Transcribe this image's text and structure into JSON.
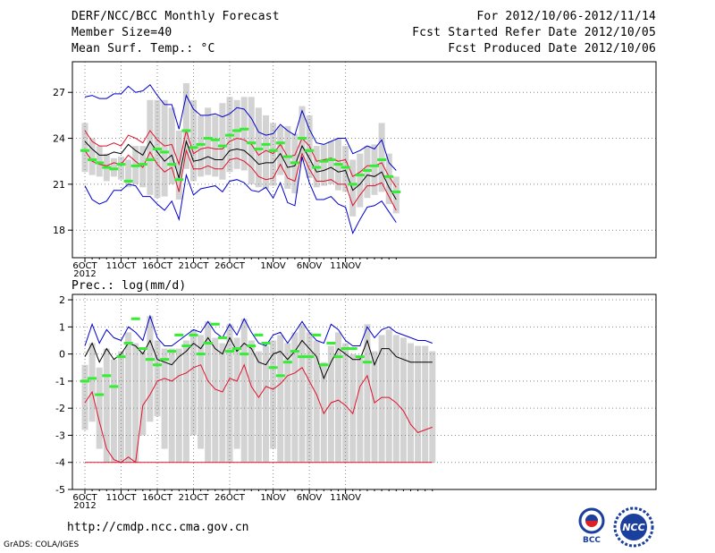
{
  "header": {
    "title": "DERF/NCC/BCC Monthly Forecast",
    "member_size": "Member Size=40",
    "variable": "Mean Surf. Temp.: °C",
    "period": "For 2012/10/06-2012/11/14",
    "started": "Fcst Started Refer Date 2012/10/05",
    "produced": "Fcst Produced Date 2012/10/06"
  },
  "footer": {
    "url": "http://cmdp.ncc.cma.gov.cn",
    "credit": "GrADS: COLA/IGES",
    "logo_bcc": "BCC",
    "logo_ncc": "NCC"
  },
  "colors": {
    "box": "#d3d3d3",
    "mean": "#000000",
    "spread": "#e0102a",
    "envelope": "#0000cc",
    "obs": "#33ee33",
    "grid": "#888888"
  },
  "chart_data": [
    {
      "type": "line",
      "title": "Mean Surf. Temp.: °C",
      "ylim": [
        16.2,
        29
      ],
      "yticks": [
        18,
        21,
        24,
        27
      ],
      "xticks": [
        {
          "day": 0,
          "label": "6OCT"
        },
        {
          "day": 5,
          "label": "11OCT"
        },
        {
          "day": 10,
          "label": "16OCT"
        },
        {
          "day": 15,
          "label": "21OCT"
        },
        {
          "day": 20,
          "label": "26OCT"
        },
        {
          "day": 26,
          "label": "1NOV"
        },
        {
          "day": 31,
          "label": "6NOV"
        },
        {
          "day": 36,
          "label": "11NOV"
        }
      ],
      "year_label": "2012",
      "series": [
        {
          "name": "ensemble max",
          "role": "envelope",
          "values": [
            26.7,
            26.8,
            26.6,
            26.6,
            26.9,
            26.9,
            27.4,
            27.0,
            27.1,
            27.5,
            26.8,
            26.2,
            26.2,
            24.6,
            26.8,
            25.9,
            25.5,
            25.5,
            25.6,
            25.4,
            25.6,
            26.0,
            25.9,
            25.3,
            24.4,
            24.2,
            24.3,
            24.9,
            24.5,
            24.2,
            25.8,
            24.6,
            23.7,
            23.6,
            23.8,
            24.0,
            24.0,
            23.0,
            23.2,
            23.5,
            23.3,
            23.9,
            22.4,
            21.9
          ]
        },
        {
          "name": "mean + spread",
          "role": "spread",
          "values": [
            24.5,
            23.8,
            23.5,
            23.5,
            23.7,
            23.5,
            24.2,
            24.0,
            23.7,
            24.5,
            23.9,
            23.5,
            23.6,
            22.3,
            24.5,
            23.0,
            23.3,
            23.4,
            23.3,
            23.3,
            23.8,
            24.0,
            23.9,
            23.6,
            22.9,
            23.2,
            23.0,
            23.6,
            22.8,
            22.9,
            24.0,
            23.5,
            22.5,
            22.6,
            22.7,
            22.5,
            22.6,
            21.5,
            21.8,
            22.2,
            22.2,
            22.4,
            21.5,
            20.8
          ]
        },
        {
          "name": "ensemble mean",
          "role": "mean",
          "values": [
            23.8,
            23.3,
            22.9,
            22.9,
            23.1,
            23.0,
            23.6,
            23.2,
            22.9,
            23.8,
            23.1,
            22.5,
            22.9,
            21.4,
            23.8,
            22.5,
            22.6,
            22.8,
            22.6,
            22.6,
            23.2,
            23.3,
            23.2,
            22.8,
            22.3,
            22.4,
            22.4,
            23.0,
            22.1,
            22.2,
            23.5,
            22.7,
            21.8,
            21.9,
            22.1,
            21.8,
            21.9,
            20.6,
            21.0,
            21.6,
            21.5,
            21.8,
            20.8,
            20.0
          ]
        },
        {
          "name": "mean - spread",
          "role": "spread",
          "values": [
            23.2,
            22.5,
            22.3,
            22.2,
            22.4,
            22.3,
            22.9,
            22.5,
            22.1,
            23.1,
            22.3,
            21.8,
            22.1,
            20.5,
            23.2,
            22.0,
            22.0,
            22.2,
            22.0,
            22.0,
            22.6,
            22.7,
            22.5,
            22.1,
            21.5,
            21.3,
            21.4,
            22.3,
            21.4,
            21.2,
            23.0,
            22.0,
            21.2,
            21.2,
            21.3,
            21.0,
            21.0,
            19.6,
            20.3,
            20.9,
            20.9,
            21.1,
            20.2,
            19.3
          ]
        },
        {
          "name": "ensemble min",
          "role": "envelope",
          "values": [
            20.9,
            20.0,
            19.7,
            19.9,
            20.6,
            20.6,
            21.0,
            20.9,
            20.2,
            20.2,
            19.7,
            19.3,
            19.9,
            18.7,
            21.6,
            20.3,
            20.7,
            20.8,
            20.9,
            20.5,
            21.2,
            21.3,
            21.1,
            20.6,
            20.5,
            20.8,
            20.1,
            21.1,
            19.8,
            19.6,
            22.8,
            21.1,
            20.0,
            20.0,
            20.2,
            19.7,
            19.5,
            17.8,
            18.7,
            19.5,
            19.6,
            19.9,
            19.2,
            18.5
          ]
        },
        {
          "name": "observed",
          "role": "obs",
          "values": [
            23.2,
            22.6,
            22.4,
            22.1,
            22.0,
            22.3,
            21.2,
            22.2,
            22.3,
            22.6,
            23.3,
            23.1,
            22.3,
            21.3,
            24.5,
            23.4,
            23.6,
            24.0,
            23.9,
            23.5,
            24.2,
            24.5,
            24.6,
            23.7,
            23.3,
            23.6,
            23.2,
            23.7,
            22.8,
            22.4,
            24.0,
            23.2,
            22.1,
            22.5,
            22.6,
            22.3,
            22.1,
            21.0,
            21.6,
            21.9,
            22.2,
            22.6,
            21.5,
            20.5
          ]
        }
      ],
      "boxes": {
        "q_low": [
          21.8,
          21.6,
          21.5,
          21.2,
          21.5,
          21.3,
          20.8,
          21.0,
          20.8,
          20.3,
          20.1,
          20.2,
          21.0,
          20.0,
          22.0,
          21.2,
          21.5,
          21.6,
          21.5,
          21.3,
          21.8,
          22.0,
          21.9,
          21.0,
          20.8,
          20.7,
          20.9,
          21.6,
          20.7,
          20.4,
          22.5,
          21.4,
          20.8,
          20.9,
          21.0,
          20.6,
          20.5,
          18.9,
          19.5,
          20.1,
          20.3,
          20.5,
          19.7,
          19.1
        ],
        "q_high": [
          25.0,
          24.0,
          23.5,
          23.0,
          22.7,
          22.8,
          22.6,
          23.5,
          23.5,
          26.5,
          26.5,
          26.5,
          26.0,
          24.5,
          27.6,
          26.5,
          25.5,
          26.0,
          25.5,
          26.3,
          26.7,
          26.5,
          26.7,
          26.7,
          26.0,
          25.5,
          25.0,
          24.8,
          24.8,
          24.3,
          26.1,
          25.5,
          23.5,
          23.6,
          23.8,
          24.0,
          23.5,
          22.6,
          23.0,
          23.5,
          23.6,
          25.0,
          23.0,
          21.5
        ]
      }
    },
    {
      "type": "line",
      "title": "Prec.: log(mm/d)",
      "ylim": [
        -5,
        2.2
      ],
      "yticks": [
        -5,
        -4,
        -3,
        -2,
        -1,
        0,
        1,
        2
      ],
      "xticks": [
        {
          "day": 0,
          "label": "6OCT"
        },
        {
          "day": 5,
          "label": "11OCT"
        },
        {
          "day": 10,
          "label": "16OCT"
        },
        {
          "day": 15,
          "label": "21OCT"
        },
        {
          "day": 20,
          "label": "26OCT"
        },
        {
          "day": 26,
          "label": "1NOV"
        },
        {
          "day": 31,
          "label": "6NOV"
        },
        {
          "day": 36,
          "label": "11NOV"
        }
      ],
      "year_label": "2012",
      "series": [
        {
          "name": "ensemble max",
          "role": "envelope",
          "values": [
            0.3,
            1.1,
            0.4,
            0.9,
            0.6,
            0.5,
            1.0,
            0.8,
            0.5,
            1.4,
            0.6,
            0.3,
            0.3,
            0.5,
            0.7,
            0.9,
            0.8,
            1.2,
            0.8,
            0.6,
            1.1,
            0.7,
            1.3,
            0.8,
            0.4,
            0.3,
            0.7,
            0.8,
            0.4,
            0.8,
            1.2,
            0.8,
            0.5,
            0.4,
            1.1,
            0.9,
            0.5,
            0.3,
            0.3,
            1.0,
            0.6,
            0.9,
            1.0,
            0.8,
            0.7,
            0.6,
            0.5,
            0.5,
            0.4
          ]
        },
        {
          "name": "ensemble mean",
          "role": "mean",
          "values": [
            -0.1,
            0.4,
            -0.3,
            0.2,
            -0.2,
            0.0,
            0.4,
            0.3,
            0.0,
            0.5,
            -0.2,
            -0.3,
            -0.4,
            -0.1,
            0.1,
            0.4,
            0.2,
            0.6,
            0.2,
            0.0,
            0.6,
            0.1,
            0.4,
            0.2,
            -0.3,
            -0.4,
            0.0,
            0.1,
            -0.2,
            0.1,
            0.5,
            0.2,
            -0.1,
            -0.9,
            -0.3,
            0.2,
            0.0,
            -0.2,
            -0.2,
            0.5,
            -0.4,
            0.2,
            0.2,
            -0.1,
            -0.2,
            -0.3,
            -0.3,
            -0.3,
            -0.3
          ]
        },
        {
          "name": "mean - spread",
          "role": "spread",
          "values": [
            -1.8,
            -1.4,
            -2.5,
            -3.5,
            -3.9,
            -4.0,
            -3.8,
            -4.0,
            -1.9,
            -1.5,
            -1.0,
            -0.9,
            -1.0,
            -0.8,
            -0.7,
            -0.5,
            -0.4,
            -1.0,
            -1.3,
            -1.4,
            -0.9,
            -1.0,
            -0.4,
            -1.2,
            -1.6,
            -1.2,
            -1.3,
            -1.1,
            -0.8,
            -0.7,
            -0.5,
            -1.0,
            -1.5,
            -2.2,
            -1.8,
            -1.7,
            -1.9,
            -2.2,
            -1.2,
            -0.8,
            -1.8,
            -1.6,
            -1.6,
            -1.8,
            -2.1,
            -2.6,
            -2.9,
            -2.8,
            -2.7
          ]
        },
        {
          "name": "observed",
          "role": "obs",
          "values": [
            -1.0,
            -0.9,
            -1.5,
            -0.8,
            -1.2,
            -0.1,
            0.4,
            1.3,
            0.2,
            -0.2,
            -0.4,
            -0.2,
            0.1,
            0.7,
            0.3,
            0.7,
            0.0,
            0.4,
            1.1,
            0.6,
            0.1,
            0.2,
            0.0,
            0.3,
            0.7,
            0.4,
            -0.5,
            -0.8,
            -0.3,
            0.1,
            -0.1,
            -0.1,
            0.7,
            -0.4,
            0.4,
            -0.1,
            0.2,
            0.2,
            -0.1,
            -0.3
          ]
        }
      ],
      "floor": -4,
      "boxes": {
        "q_low": [
          -2.8,
          -2.5,
          -3.5,
          -4.0,
          -4.0,
          -4.0,
          -4.0,
          -4.0,
          -3.0,
          -2.5,
          -2.3,
          -3.5,
          -4.0,
          -4.0,
          -4.0,
          -3.0,
          -3.5,
          -4.0,
          -4.0,
          -4.0,
          -4.0,
          -3.5,
          -4.0,
          -4.0,
          -4.0,
          -4.0,
          -3.5,
          -4.0,
          -4.0,
          -4.0,
          -4.0,
          -4.0,
          -4.0,
          -4.0,
          -4.0,
          -4.0,
          -4.0,
          -4.0,
          -4.0,
          -4.0,
          -4.0,
          -4.0,
          -4.0,
          -4.0,
          -4.0,
          -4.0,
          -4.0,
          -4.0,
          -4.0
        ],
        "q_high": [
          -0.4,
          0.4,
          -0.5,
          0.2,
          -0.2,
          0.1,
          0.8,
          0.4,
          0.1,
          1.4,
          0.5,
          0.2,
          0.2,
          0.2,
          0.5,
          0.9,
          0.7,
          1.2,
          0.6,
          0.4,
          1.1,
          0.6,
          1.3,
          0.5,
          0.1,
          0.3,
          0.5,
          0.7,
          0.4,
          0.8,
          1.1,
          0.8,
          0.5,
          -0.3,
          0.3,
          0.8,
          0.4,
          0.0,
          -0.1,
          1.1,
          0.1,
          0.7,
          0.9,
          0.7,
          0.6,
          0.4,
          0.3,
          0.3,
          0.1
        ]
      }
    }
  ]
}
